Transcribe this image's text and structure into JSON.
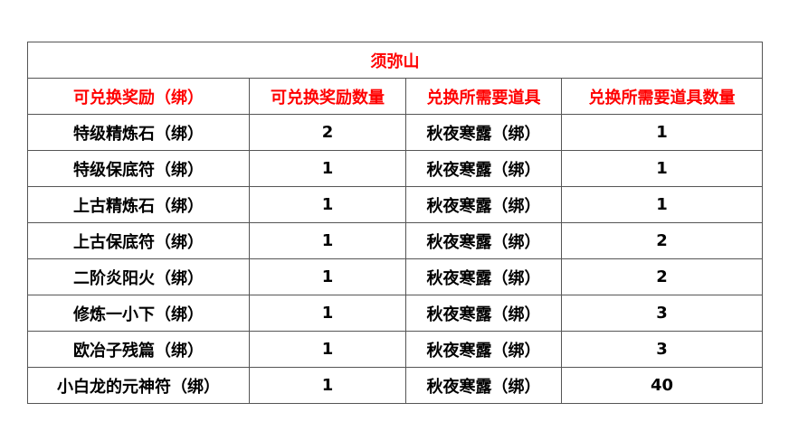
{
  "title": "须弥山",
  "headers": [
    "可兑换奖励（绑）",
    "可兑换奖励数量",
    "兑换所需要道具",
    "兑换所需要道具数量"
  ],
  "rows": [
    [
      "特级精炼石（绑）",
      "2",
      "秋夜寒露（绑）",
      "1"
    ],
    [
      "特级保底符（绑）",
      "1",
      "秋夜寒露（绑）",
      "1"
    ],
    [
      "上古精炼石（绑）",
      "1",
      "秋夜寒露（绑）",
      "1"
    ],
    [
      "上古保底符（绑）",
      "1",
      "秋夜寒露（绑）",
      "2"
    ],
    [
      "二阶炎阳火（绑）",
      "1",
      "秋夜寒露（绑）",
      "2"
    ],
    [
      "修炼一小下（绑）",
      "1",
      "秋夜寒露（绑）",
      "3"
    ],
    [
      "欧冶子残篇（绑）",
      "1",
      "秋夜寒露（绑）",
      "3"
    ],
    [
      "小白龙的元神符（绑）",
      "1",
      "秋夜寒露（绑）",
      "40"
    ]
  ],
  "colors": {
    "header_text": "#ff0000",
    "body_text": "#000000",
    "border": "#555555"
  }
}
